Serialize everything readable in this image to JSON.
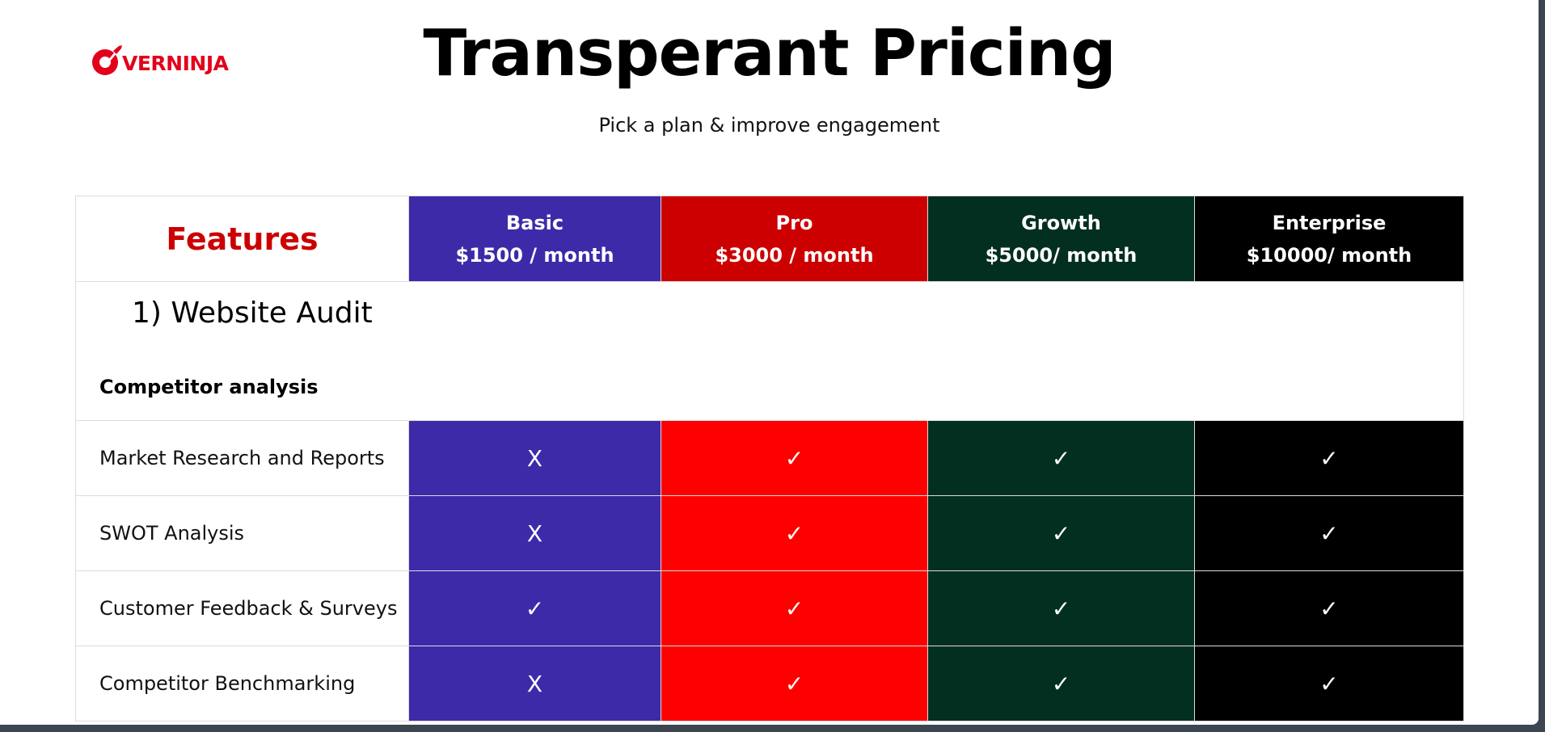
{
  "logo": {
    "text": "VERNINJA",
    "color": "#e3001b"
  },
  "header": {
    "title": "Transperant Pricing",
    "subtitle": "Pick a plan & improve engagement"
  },
  "table": {
    "features_header": "Features",
    "plans": [
      {
        "name": "Basic",
        "price": "$1500 / month",
        "color": "#3d2aa9"
      },
      {
        "name": "Pro",
        "price": "$3000 / month",
        "color": "#cc0000"
      },
      {
        "name": "Growth",
        "price": "$5000/ month",
        "color": "#032f20"
      },
      {
        "name": "Enterprise",
        "price": "$10000/ month",
        "color": "#000000"
      }
    ],
    "section": {
      "title": "1) Website Audit",
      "subtitle": "Competitor analysis"
    },
    "rows": [
      {
        "feature": "Market Research and Reports",
        "marks": [
          "X",
          "✓",
          "✓",
          "✓"
        ]
      },
      {
        "feature": "SWOT Analysis",
        "marks": [
          "X",
          "✓",
          "✓",
          "✓"
        ]
      },
      {
        "feature": "Customer Feedback & Surveys",
        "marks": [
          "✓",
          "✓",
          "✓",
          "✓"
        ]
      },
      {
        "feature": "Competitor Benchmarking",
        "marks": [
          "X",
          "✓",
          "✓",
          "✓"
        ]
      }
    ]
  }
}
